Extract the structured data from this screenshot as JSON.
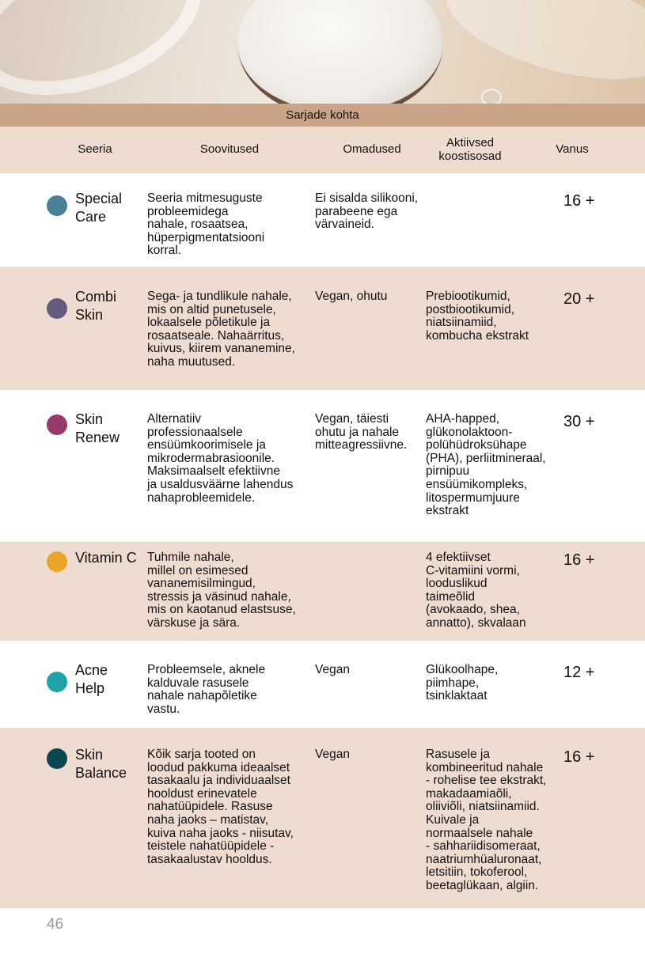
{
  "section_title": "Sarjade kohta",
  "headers": {
    "series": "Seeria",
    "recommendations": "Soovitused",
    "properties": "Omadused",
    "active": "Aktiivsed\nkoostisosad",
    "age": "Vanus"
  },
  "rows": [
    {
      "name": "Special\nCare",
      "color": "#4a8098",
      "recommendations": "Seeria mitmesuguste\nprobleemidega\nnahale, rosaatsea,\nhüperpigmentatsiooni\nkorral.",
      "properties": "Ei sisalda silikooni,\nparabeene ega\nvärvaineid.",
      "active": "",
      "age": "16 +"
    },
    {
      "name": "Combi\nSkin",
      "color": "#675b82",
      "recommendations": "Sega- ja tundlikule nahale,\nmis on altid punetusele,\nlokaalsele põletikule ja\nrosaatseale. Nahaärritus,\nkuivus, kiirem vananemine,\nnaha muutused.",
      "properties": "Vegan, ohutu",
      "active": "Prebiootikumid,\npostbiootikumid,\nniatsiinamiid,\nkombucha ekstrakt",
      "age": "20 +"
    },
    {
      "name": "Skin\nRenew",
      "color": "#953a6a",
      "recommendations": "Alternatiiv\nprofessionaalsele\nensüümkoorimisele ja\nmikrodermabrasioonile.\nMaksimaalselt efektiivne\nja usaldusväärne lahendus\nnahaprobleemidele.",
      "properties": "Vegan, täiesti\nohutu ja nahale\nmitteagressiivne.",
      "active": "AHA-happed,\nglükonolaktoon-\npolühüdroksühape\n(PHA), perliitmineraal,\npirnipuu\nensüümikompleks,\nlitospermumjuure\nekstrakt",
      "age": "30 +"
    },
    {
      "name": "Vitamin C",
      "color": "#eba42a",
      "recommendations": "Tuhmile nahale,\nmillel on esimesed\nvananemisilmingud,\nstressis ja väsinud nahale,\nmis on kaotanud elastsuse,\nvärskuse ja sära.",
      "properties": "",
      "active": "4 efektiivset\nC-vitamiini vormi,\nlooduslikud\ntaimeõlid\n(avokaado, shea,\nannatto), skvalaan",
      "age": "16 +"
    },
    {
      "name": "Acne\nHelp",
      "color": "#1ea3a8",
      "recommendations": "Probleemsele, aknele\nkalduvale rasusele\nnahale nahapõletike\nvastu.",
      "properties": "Vegan",
      "active": "Glükoolhape,\npiimhape,\ntsinklaktaat",
      "age": "12 +"
    },
    {
      "name": "Skin\nBalance",
      "color": "#0c4650",
      "recommendations": "Kõik sarja tooted on\nloodud pakkuma ideaalset\ntasakaalu ja individuaalset\nhooldust erinevatele\nnahatüüpidele. Rasuse\nnaha jaoks – matistav,\nkuiva naha jaoks - niisutav,\nteistele nahatüüpidele -\ntasakaalustav hooldus.",
      "properties": "Vegan",
      "active": "Rasusele ja\nkombineeritud nahale\n- rohelise tee ekstrakt,\nmakadaamiaõli,\noliiviõli, niatsiinamiid.\nKuivale ja\nnormaalsele nahale\n- sahhariidisomeraat,\nnaatriumhüaluronaat,\nletsitiin, tokoferool,\nbeetaglükaan, algiin.",
      "age": "16 +"
    }
  ],
  "page_number": "46"
}
